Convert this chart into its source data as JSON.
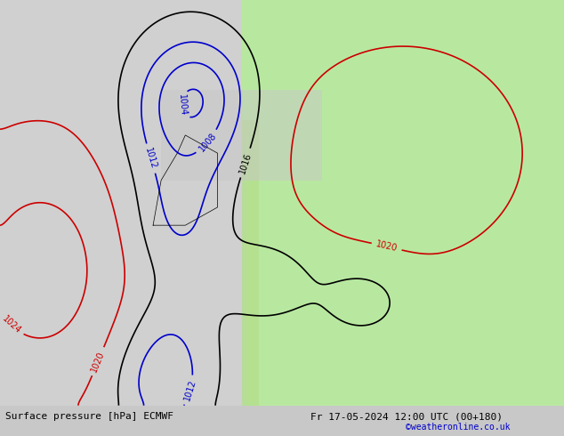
{
  "title_left": "Surface pressure [hPa] ECMWF",
  "title_right": "Fr 17-05-2024 12:00 UTC (00+180)",
  "credit": "©weatheronline.co.uk",
  "fig_width": 6.34,
  "fig_height": 4.9,
  "dpi": 100,
  "bg_color": "#d0d0d0",
  "land_color": "#b8e8a0",
  "sea_color": "#d8d8d8",
  "atlantic_color": "#d0d0d0",
  "contour_color_high": "#ff0000",
  "contour_color_low": "#0000ff",
  "contour_color_transition": "#000000",
  "label_fontsize": 7,
  "title_fontsize": 8,
  "credit_fontsize": 7,
  "credit_color": "#0000cc"
}
